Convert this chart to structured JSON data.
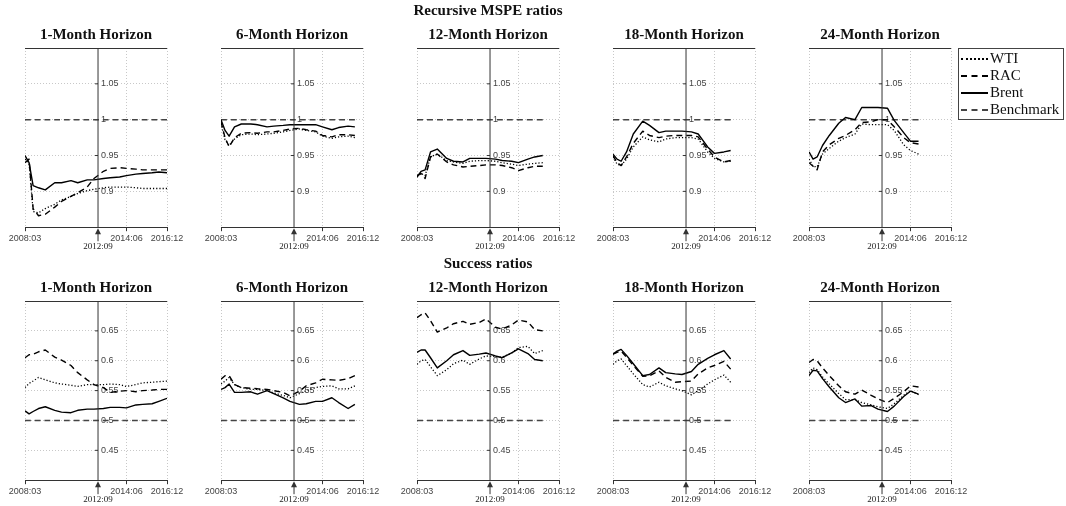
{
  "chart_data": [
    {
      "type": "line",
      "title": "1-Month Horizon",
      "x": [
        "2008-03",
        "2008-06",
        "2008-09",
        "2009-01",
        "2009-06",
        "2010-01",
        "2010-06",
        "2011-01",
        "2011-06",
        "2012-01",
        "2012-06",
        "2013-01",
        "2013-06",
        "2014-01",
        "2014-06",
        "2015-01",
        "2015-06",
        "2016-01",
        "2016-06",
        "2016-12"
      ],
      "xlim": [
        "2008-03",
        "2016-12"
      ],
      "xticks": [
        {
          "value": "2008-03",
          "label": "2008:03"
        },
        {
          "value": "2014-06",
          "label": "2014:06"
        },
        {
          "value": "2016-12",
          "label": "2016:12"
        }
      ],
      "ylim": [
        0.85,
        1.1
      ],
      "yticks": [
        0.9,
        0.95,
        1,
        1.05
      ],
      "grid": true,
      "marker": "none",
      "ref_lines": [
        {
          "axis": "x",
          "value": "2012-09",
          "label": "2012:09",
          "color": "#333333"
        }
      ],
      "series": [
        {
          "color": "#000000",
          "line_style": "dotted",
          "values": [
            0.945,
            0.94,
            0.872,
            0.87,
            0.876,
            0.882,
            0.888,
            0.893,
            0.897,
            0.901,
            0.903,
            0.905,
            0.906,
            0.906,
            0.906,
            0.905,
            0.904,
            0.904,
            0.904,
            0.904
          ]
        },
        {
          "color": "#000000",
          "line_style": "dashed",
          "values": [
            0.94,
            0.945,
            0.876,
            0.866,
            0.868,
            0.878,
            0.886,
            0.893,
            0.898,
            0.906,
            0.918,
            0.928,
            0.932,
            0.933,
            0.932,
            0.931,
            0.93,
            0.93,
            0.93,
            0.93
          ]
        },
        {
          "color": "#000000",
          "line_style": "solid",
          "values": [
            0.95,
            0.94,
            0.908,
            0.905,
            0.902,
            0.912,
            0.912,
            0.915,
            0.912,
            0.916,
            0.916,
            0.918,
            0.919,
            0.92,
            0.922,
            0.924,
            0.925,
            0.926,
            0.927,
            0.926
          ]
        },
        {
          "color": "#444444",
          "line_style": "dashed",
          "x": [
            "2008-03",
            "2016-12"
          ],
          "values": [
            1,
            1
          ]
        }
      ]
    },
    {
      "type": "line",
      "title": "6-Month Horizon",
      "x": [
        "2008-03",
        "2008-06",
        "2008-09",
        "2009-01",
        "2009-06",
        "2010-01",
        "2010-06",
        "2011-01",
        "2011-06",
        "2012-01",
        "2012-06",
        "2013-01",
        "2013-06",
        "2014-01",
        "2014-06",
        "2015-01",
        "2015-06",
        "2016-01",
        "2016-06"
      ],
      "xlim": [
        "2008-03",
        "2016-12"
      ],
      "xticks": [
        {
          "value": "2008-03",
          "label": "2008:03"
        },
        {
          "value": "2014-06",
          "label": "2014:06"
        },
        {
          "value": "2016-12",
          "label": "2016:12"
        }
      ],
      "ylim": [
        0.85,
        1.1
      ],
      "yticks": [
        0.9,
        0.95,
        1,
        1.05
      ],
      "grid": true,
      "marker": "none",
      "ref_lines": [
        {
          "axis": "x",
          "value": "2012-09",
          "label": "2012:09",
          "color": "#333333"
        }
      ],
      "series": [
        {
          "color": "#000000",
          "line_style": "dotted",
          "values": [
            0.995,
            0.972,
            0.964,
            0.973,
            0.979,
            0.98,
            0.979,
            0.98,
            0.981,
            0.983,
            0.985,
            0.987,
            0.985,
            0.983,
            0.977,
            0.974,
            0.976,
            0.977,
            0.975
          ]
        },
        {
          "color": "#000000",
          "line_style": "dashed",
          "values": [
            0.997,
            0.975,
            0.962,
            0.975,
            0.981,
            0.982,
            0.981,
            0.983,
            0.983,
            0.985,
            0.987,
            0.988,
            0.986,
            0.984,
            0.978,
            0.976,
            0.979,
            0.979,
            0.978
          ]
        },
        {
          "color": "#000000",
          "line_style": "solid",
          "values": [
            1.0,
            0.985,
            0.977,
            0.99,
            0.994,
            0.994,
            0.993,
            0.99,
            0.991,
            0.992,
            0.993,
            0.993,
            0.993,
            0.993,
            0.99,
            0.986,
            0.989,
            0.991,
            0.99
          ]
        },
        {
          "color": "#444444",
          "line_style": "dashed",
          "x": [
            "2008-03",
            "2016-06"
          ],
          "values": [
            1,
            1
          ]
        }
      ]
    },
    {
      "type": "line",
      "title": "Recursive MSPE ratios",
      "subtitle": "12-Month Horizon",
      "x": [
        "2008-03",
        "2008-06",
        "2008-09",
        "2009-01",
        "2009-06",
        "2010-01",
        "2010-06",
        "2011-01",
        "2011-06",
        "2012-01",
        "2012-06",
        "2013-01",
        "2013-06",
        "2014-01",
        "2014-06",
        "2015-01",
        "2015-06",
        "2015-12"
      ],
      "xlim": [
        "2008-03",
        "2016-12"
      ],
      "xticks": [
        {
          "value": "2008-03",
          "label": "2008:03"
        },
        {
          "value": "2014-06",
          "label": "2014:06"
        },
        {
          "value": "2016-12",
          "label": "2016:12"
        }
      ],
      "ylim": [
        0.85,
        1.1
      ],
      "yticks": [
        0.9,
        0.95,
        1,
        1.05
      ],
      "grid": true,
      "marker": "none",
      "ref_lines": [
        {
          "axis": "x",
          "value": "2012-09",
          "label": "2012:09",
          "color": "#333333"
        }
      ],
      "series": [
        {
          "color": "#000000",
          "line_style": "dotted",
          "values": [
            0.92,
            0.925,
            0.922,
            0.948,
            0.952,
            0.943,
            0.941,
            0.939,
            0.942,
            0.943,
            0.943,
            0.942,
            0.94,
            0.938,
            0.936,
            0.938,
            0.939,
            0.94
          ]
        },
        {
          "color": "#000000",
          "line_style": "dashed",
          "values": [
            0.922,
            0.925,
            0.918,
            0.948,
            0.952,
            0.941,
            0.937,
            0.934,
            0.935,
            0.936,
            0.937,
            0.937,
            0.936,
            0.933,
            0.929,
            0.933,
            0.935,
            0.935
          ]
        },
        {
          "color": "#000000",
          "line_style": "solid",
          "values": [
            0.92,
            0.928,
            0.93,
            0.955,
            0.959,
            0.946,
            0.942,
            0.941,
            0.946,
            0.946,
            0.946,
            0.945,
            0.943,
            0.942,
            0.94,
            0.945,
            0.948,
            0.95
          ]
        },
        {
          "color": "#444444",
          "line_style": "dashed",
          "x": [
            "2008-03",
            "2015-12"
          ],
          "values": [
            1,
            1
          ]
        }
      ]
    },
    {
      "type": "line",
      "title": "18-Month Horizon",
      "x": [
        "2008-03",
        "2008-06",
        "2008-09",
        "2009-01",
        "2009-06",
        "2010-01",
        "2010-06",
        "2011-01",
        "2011-06",
        "2012-01",
        "2012-06",
        "2013-01",
        "2013-06",
        "2014-01",
        "2014-06",
        "2015-01",
        "2015-06"
      ],
      "xlim": [
        "2008-03",
        "2016-12"
      ],
      "xticks": [
        {
          "value": "2008-03",
          "label": "2008:03"
        },
        {
          "value": "2014-06",
          "label": "2014:06"
        },
        {
          "value": "2016-12",
          "label": "2016:12"
        }
      ],
      "ylim": [
        0.85,
        1.1
      ],
      "yticks": [
        0.9,
        0.95,
        1,
        1.05
      ],
      "grid": true,
      "marker": "none",
      "ref_lines": [
        {
          "axis": "x",
          "value": "2012-09",
          "label": "2012:09",
          "color": "#333333"
        }
      ],
      "series": [
        {
          "color": "#000000",
          "line_style": "dotted",
          "values": [
            0.948,
            0.938,
            0.936,
            0.945,
            0.962,
            0.976,
            0.972,
            0.969,
            0.973,
            0.975,
            0.975,
            0.975,
            0.973,
            0.955,
            0.946,
            0.941,
            0.942
          ]
        },
        {
          "color": "#000000",
          "line_style": "dashed",
          "values": [
            0.95,
            0.94,
            0.936,
            0.948,
            0.967,
            0.984,
            0.978,
            0.975,
            0.977,
            0.978,
            0.978,
            0.978,
            0.976,
            0.959,
            0.948,
            0.941,
            0.943
          ]
        },
        {
          "color": "#000000",
          "line_style": "solid",
          "values": [
            0.952,
            0.945,
            0.942,
            0.955,
            0.98,
            0.998,
            0.992,
            0.982,
            0.984,
            0.984,
            0.984,
            0.983,
            0.98,
            0.962,
            0.953,
            0.955,
            0.957
          ]
        },
        {
          "color": "#444444",
          "line_style": "dashed",
          "x": [
            "2008-03",
            "2015-06"
          ],
          "values": [
            1,
            1
          ]
        }
      ]
    },
    {
      "type": "line",
      "title": "24-Month Horizon",
      "x": [
        "2008-03",
        "2008-06",
        "2008-09",
        "2009-01",
        "2009-06",
        "2010-01",
        "2010-06",
        "2011-01",
        "2011-06",
        "2012-01",
        "2012-06",
        "2013-01",
        "2013-06",
        "2014-01",
        "2014-06",
        "2014-12"
      ],
      "xlim": [
        "2008-03",
        "2016-12"
      ],
      "xticks": [
        {
          "value": "2008-03",
          "label": "2008:03"
        },
        {
          "value": "2014-06",
          "label": "2014:06"
        },
        {
          "value": "2016-12",
          "label": "2016:12"
        }
      ],
      "ylim": [
        0.85,
        1.1
      ],
      "yticks": [
        0.9,
        0.95,
        1,
        1.05
      ],
      "grid": true,
      "marker": "none",
      "legend": "top right",
      "ref_lines": [
        {
          "axis": "x",
          "value": "2012-09",
          "label": "2012:09",
          "color": "#333333"
        }
      ],
      "series": [
        {
          "name": "WTI",
          "color": "#000000",
          "line_style": "dotted",
          "values": [
            0.945,
            0.935,
            0.934,
            0.952,
            0.96,
            0.97,
            0.975,
            0.98,
            0.994,
            0.993,
            0.993,
            0.993,
            0.985,
            0.965,
            0.957,
            0.952
          ]
        },
        {
          "name": "RAC",
          "color": "#000000",
          "line_style": "dashed",
          "values": [
            0.94,
            0.935,
            0.93,
            0.955,
            0.965,
            0.974,
            0.978,
            0.986,
            0.996,
            0.997,
            1.0,
            1.0,
            0.99,
            0.975,
            0.968,
            0.966
          ]
        },
        {
          "name": "Brent",
          "color": "#000000",
          "line_style": "solid",
          "values": [
            0.955,
            0.945,
            0.948,
            0.964,
            0.978,
            0.995,
            1.003,
            1.0,
            1.017,
            1.017,
            1.017,
            1.016,
            0.999,
            0.982,
            0.97,
            0.97
          ]
        },
        {
          "name": "Benchmark",
          "color": "#444444",
          "line_style": "dashed",
          "x": [
            "2008-03",
            "2014-12"
          ],
          "values": [
            1,
            1
          ]
        }
      ]
    },
    {
      "type": "line",
      "title": "1-Month Horizon",
      "x": [
        "2008-03",
        "2008-06",
        "2008-09",
        "2009-01",
        "2009-06",
        "2010-01",
        "2010-06",
        "2011-01",
        "2011-06",
        "2012-01",
        "2012-06",
        "2013-01",
        "2013-06",
        "2014-01",
        "2014-06",
        "2015-01",
        "2015-06",
        "2016-01",
        "2016-06",
        "2016-12"
      ],
      "xlim": [
        "2008-03",
        "2016-12"
      ],
      "xticks": [
        {
          "value": "2008-03",
          "label": "2008:03"
        },
        {
          "value": "2014-06",
          "label": "2014:06"
        },
        {
          "value": "2016-12",
          "label": "2016:12"
        }
      ],
      "ylim": [
        0.4,
        0.7
      ],
      "yticks": [
        0.45,
        0.5,
        0.55,
        0.6,
        0.65
      ],
      "grid": true,
      "marker": "none",
      "ref_lines": [
        {
          "axis": "x",
          "value": "2012-09",
          "label": "2012:09",
          "color": "#333333"
        }
      ],
      "series": [
        {
          "color": "#000000",
          "line_style": "dotted",
          "values": [
            0.555,
            0.562,
            0.566,
            0.572,
            0.568,
            0.563,
            0.561,
            0.559,
            0.557,
            0.56,
            0.56,
            0.56,
            0.561,
            0.56,
            0.557,
            0.56,
            0.563,
            0.564,
            0.565,
            0.566
          ]
        },
        {
          "color": "#000000",
          "line_style": "dashed",
          "values": [
            0.605,
            0.61,
            0.611,
            0.615,
            0.618,
            0.606,
            0.601,
            0.592,
            0.58,
            0.568,
            0.56,
            0.555,
            0.547,
            0.549,
            0.55,
            0.548,
            0.55,
            0.551,
            0.552,
            0.552
          ]
        },
        {
          "color": "#000000",
          "line_style": "solid",
          "values": [
            0.516,
            0.511,
            0.515,
            0.52,
            0.523,
            0.517,
            0.514,
            0.513,
            0.517,
            0.519,
            0.519,
            0.52,
            0.522,
            0.522,
            0.521,
            0.526,
            0.527,
            0.528,
            0.532,
            0.537
          ]
        },
        {
          "color": "#444444",
          "line_style": "dashed",
          "x": [
            "2008-03",
            "2016-12"
          ],
          "values": [
            0.5,
            0.5
          ]
        }
      ]
    },
    {
      "type": "line",
      "title": "6-Month Horizon",
      "x": [
        "2008-03",
        "2008-06",
        "2008-09",
        "2009-01",
        "2009-06",
        "2010-01",
        "2010-06",
        "2011-01",
        "2011-06",
        "2012-01",
        "2012-06",
        "2013-01",
        "2013-06",
        "2014-01",
        "2014-06",
        "2015-01",
        "2015-06",
        "2016-01",
        "2016-06"
      ],
      "xlim": [
        "2008-03",
        "2016-12"
      ],
      "xticks": [
        {
          "value": "2008-03",
          "label": "2008:03"
        },
        {
          "value": "2014-06",
          "label": "2014:06"
        },
        {
          "value": "2016-12",
          "label": "2016:12"
        }
      ],
      "ylim": [
        0.4,
        0.7
      ],
      "yticks": [
        0.45,
        0.5,
        0.55,
        0.6,
        0.65
      ],
      "grid": true,
      "marker": "none",
      "ref_lines": [
        {
          "axis": "x",
          "value": "2012-09",
          "label": "2012:09",
          "color": "#333333"
        }
      ],
      "series": [
        {
          "color": "#000000",
          "line_style": "dotted",
          "values": [
            0.561,
            0.566,
            0.572,
            0.56,
            0.555,
            0.552,
            0.552,
            0.55,
            0.546,
            0.542,
            0.538,
            0.545,
            0.55,
            0.555,
            0.557,
            0.558,
            0.553,
            0.553,
            0.558
          ]
        },
        {
          "color": "#000000",
          "line_style": "dashed",
          "values": [
            0.569,
            0.575,
            0.575,
            0.56,
            0.555,
            0.554,
            0.553,
            0.552,
            0.55,
            0.547,
            0.541,
            0.549,
            0.558,
            0.563,
            0.569,
            0.568,
            0.567,
            0.57,
            0.575
          ]
        },
        {
          "color": "#000000",
          "line_style": "solid",
          "values": [
            0.552,
            0.555,
            0.561,
            0.547,
            0.547,
            0.548,
            0.544,
            0.55,
            0.545,
            0.538,
            0.532,
            0.527,
            0.528,
            0.532,
            0.532,
            0.538,
            0.53,
            0.52,
            0.527
          ]
        },
        {
          "color": "#444444",
          "line_style": "dashed",
          "x": [
            "2008-03",
            "2016-06"
          ],
          "values": [
            0.5,
            0.5
          ]
        }
      ]
    },
    {
      "type": "line",
      "title": "Success ratios",
      "subtitle": "12-Month Horizon",
      "x": [
        "2008-03",
        "2008-06",
        "2008-09",
        "2009-01",
        "2009-06",
        "2010-01",
        "2010-06",
        "2011-01",
        "2011-06",
        "2012-01",
        "2012-06",
        "2013-01",
        "2013-06",
        "2014-01",
        "2014-06",
        "2015-01",
        "2015-06",
        "2015-12"
      ],
      "xlim": [
        "2008-03",
        "2016-12"
      ],
      "xticks": [
        {
          "value": "2008-03",
          "label": "2008:03"
        },
        {
          "value": "2014-06",
          "label": "2014:06"
        },
        {
          "value": "2016-12",
          "label": "2016:12"
        }
      ],
      "ylim": [
        0.4,
        0.7
      ],
      "yticks": [
        0.45,
        0.5,
        0.55,
        0.6,
        0.65
      ],
      "grid": true,
      "marker": "none",
      "ref_lines": [
        {
          "axis": "x",
          "value": "2012-09",
          "label": "2012:09",
          "color": "#333333"
        }
      ],
      "series": [
        {
          "color": "#000000",
          "line_style": "dotted",
          "values": [
            0.594,
            0.6,
            0.602,
            0.59,
            0.575,
            0.585,
            0.595,
            0.601,
            0.594,
            0.603,
            0.608,
            0.607,
            0.606,
            0.613,
            0.622,
            0.624,
            0.612,
            0.617
          ]
        },
        {
          "color": "#000000",
          "line_style": "dashed",
          "values": [
            0.672,
            0.677,
            0.68,
            0.667,
            0.648,
            0.655,
            0.662,
            0.666,
            0.661,
            0.664,
            0.67,
            0.656,
            0.653,
            0.66,
            0.668,
            0.665,
            0.652,
            0.65
          ]
        },
        {
          "color": "#000000",
          "line_style": "solid",
          "values": [
            0.614,
            0.618,
            0.618,
            0.605,
            0.588,
            0.6,
            0.61,
            0.617,
            0.609,
            0.611,
            0.613,
            0.608,
            0.605,
            0.613,
            0.62,
            0.612,
            0.602,
            0.6
          ]
        },
        {
          "color": "#444444",
          "line_style": "dashed",
          "x": [
            "2008-03",
            "2015-12"
          ],
          "values": [
            0.5,
            0.5
          ]
        }
      ]
    },
    {
      "type": "line",
      "title": "18-Month Horizon",
      "x": [
        "2008-03",
        "2008-06",
        "2008-09",
        "2009-01",
        "2009-06",
        "2010-01",
        "2010-06",
        "2011-01",
        "2011-06",
        "2012-01",
        "2012-06",
        "2013-01",
        "2013-06",
        "2014-01",
        "2014-06",
        "2015-01",
        "2015-06"
      ],
      "xlim": [
        "2008-03",
        "2016-12"
      ],
      "xticks": [
        {
          "value": "2008-03",
          "label": "2008:03"
        },
        {
          "value": "2014-06",
          "label": "2014:06"
        },
        {
          "value": "2016-12",
          "label": "2016:12"
        }
      ],
      "ylim": [
        0.4,
        0.7
      ],
      "yticks": [
        0.45,
        0.5,
        0.55,
        0.6,
        0.65
      ],
      "grid": true,
      "marker": "none",
      "ref_lines": [
        {
          "axis": "x",
          "value": "2012-09",
          "label": "2012:09",
          "color": "#333333"
        }
      ],
      "series": [
        {
          "color": "#000000",
          "line_style": "dotted",
          "values": [
            0.594,
            0.6,
            0.603,
            0.592,
            0.578,
            0.56,
            0.556,
            0.564,
            0.558,
            0.553,
            0.55,
            0.543,
            0.55,
            0.561,
            0.568,
            0.576,
            0.564
          ]
        },
        {
          "color": "#000000",
          "line_style": "dashed",
          "values": [
            0.611,
            0.614,
            0.616,
            0.606,
            0.592,
            0.574,
            0.575,
            0.583,
            0.572,
            0.564,
            0.565,
            0.566,
            0.578,
            0.588,
            0.592,
            0.599,
            0.586
          ]
        },
        {
          "color": "#000000",
          "line_style": "solid",
          "values": [
            0.611,
            0.616,
            0.619,
            0.609,
            0.595,
            0.575,
            0.577,
            0.588,
            0.58,
            0.578,
            0.577,
            0.582,
            0.594,
            0.604,
            0.61,
            0.617,
            0.603
          ]
        },
        {
          "color": "#444444",
          "line_style": "dashed",
          "x": [
            "2008-03",
            "2015-06"
          ],
          "values": [
            0.5,
            0.5
          ]
        }
      ]
    },
    {
      "type": "line",
      "title": "24-Month Horizon",
      "x": [
        "2008-03",
        "2008-06",
        "2008-09",
        "2009-01",
        "2009-06",
        "2010-01",
        "2010-06",
        "2011-01",
        "2011-06",
        "2012-01",
        "2012-06",
        "2013-01",
        "2013-06",
        "2014-01",
        "2014-06",
        "2014-12"
      ],
      "xlim": [
        "2008-03",
        "2016-12"
      ],
      "xticks": [
        {
          "value": "2008-03",
          "label": "2008:03"
        },
        {
          "value": "2014-06",
          "label": "2014:06"
        },
        {
          "value": "2016-12",
          "label": "2016:12"
        }
      ],
      "ylim": [
        0.4,
        0.7
      ],
      "yticks": [
        0.45,
        0.5,
        0.55,
        0.6,
        0.65
      ],
      "grid": true,
      "marker": "none",
      "ref_lines": [
        {
          "axis": "x",
          "value": "2012-09",
          "label": "2012:09",
          "color": "#333333"
        }
      ],
      "series": [
        {
          "color": "#000000",
          "line_style": "dotted",
          "values": [
            0.58,
            0.588,
            0.585,
            0.573,
            0.561,
            0.545,
            0.535,
            0.535,
            0.53,
            0.526,
            0.523,
            0.52,
            0.528,
            0.542,
            0.55,
            0.543
          ]
        },
        {
          "color": "#000000",
          "line_style": "dashed",
          "values": [
            0.597,
            0.602,
            0.6,
            0.588,
            0.575,
            0.558,
            0.548,
            0.544,
            0.551,
            0.542,
            0.536,
            0.53,
            0.537,
            0.548,
            0.558,
            0.556
          ]
        },
        {
          "color": "#000000",
          "line_style": "solid",
          "values": [
            0.575,
            0.584,
            0.583,
            0.57,
            0.556,
            0.538,
            0.53,
            0.536,
            0.524,
            0.525,
            0.519,
            0.515,
            0.524,
            0.54,
            0.549,
            0.544
          ]
        },
        {
          "color": "#444444",
          "line_style": "dashed",
          "x": [
            "2008-03",
            "2014-12"
          ],
          "values": [
            0.5,
            0.5
          ]
        }
      ]
    }
  ]
}
